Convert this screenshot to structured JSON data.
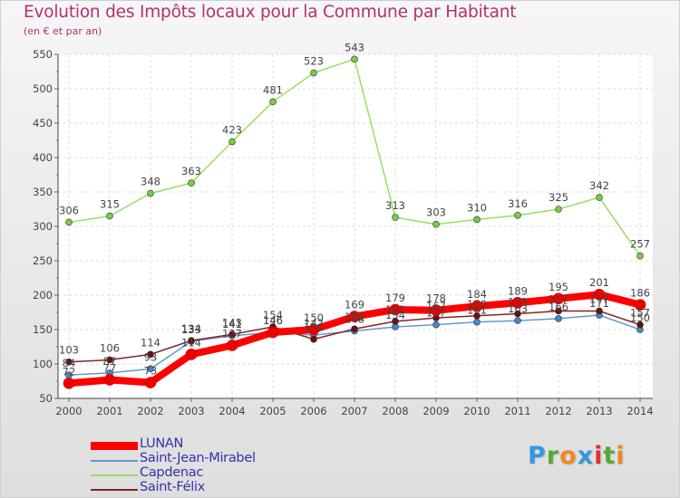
{
  "chart_data": {
    "type": "line",
    "title": "Evolution des Impôts locaux pour la Commune par Habitant",
    "subtitle": "(en € et par an)",
    "xlabel": "",
    "ylabel": "",
    "ylim": [
      50,
      550
    ],
    "y_ticks": [
      50,
      100,
      150,
      200,
      250,
      300,
      350,
      400,
      450,
      500,
      550
    ],
    "y_tick_labels": [
      "50",
      "100",
      "150",
      "200",
      "250",
      "300",
      "350",
      "400",
      "450",
      "500",
      "550"
    ],
    "grid": true,
    "legend_position": "bottom-left",
    "categories": [
      "2000",
      "2001",
      "2002",
      "2003",
      "2004",
      "2005",
      "2006",
      "2007",
      "2008",
      "2009",
      "2010",
      "2011",
      "2012",
      "2013",
      "2014"
    ],
    "series": [
      {
        "name": "Capdenac",
        "color": "#99dd66",
        "marker_color": "#77cc44",
        "values": [
          306,
          315,
          348,
          363,
          423,
          481,
          523,
          543,
          313,
          303,
          310,
          316,
          325,
          342,
          257
        ],
        "value_labels": [
          "306",
          "315",
          "348",
          "363",
          "423",
          "481",
          "523",
          "543",
          "313",
          "303",
          "310",
          "316",
          "325",
          "342",
          "257"
        ]
      },
      {
        "name": "Saint-Jean-Mirabel",
        "color": "#6699cc",
        "marker_color": "#4488cc",
        "values": [
          84,
          87,
          93,
          133,
          141,
          146,
          142,
          148,
          154,
          157,
          161,
          163,
          166,
          171,
          150
        ],
        "value_labels": [
          "84",
          "87",
          "93",
          "133",
          "141",
          "146",
          "142",
          "148",
          "154",
          "157",
          "161",
          "163",
          "166",
          "171",
          "150"
        ]
      },
      {
        "name": "Saint-Félix",
        "color": "#882222",
        "marker_color": "#661111",
        "values": [
          103,
          106,
          114,
          134,
          143,
          154,
          136,
          151,
          162,
          167,
          170,
          173,
          177,
          177,
          157
        ],
        "value_labels": [
          "103",
          "106",
          "114",
          "134",
          "143",
          "154",
          "136",
          "151",
          "162",
          "167",
          "170",
          "173",
          "177",
          "177",
          "157"
        ]
      },
      {
        "name": "LUNAN",
        "color": "#ff0000",
        "marker_color": "#ee0000",
        "values": [
          72,
          77,
          73,
          114,
          127,
          146,
          150,
          169,
          179,
          178,
          184,
          189,
          195,
          201,
          186
        ],
        "value_labels": [
          "72",
          "77",
          "73",
          "114",
          "127",
          "146",
          "150",
          "169",
          "179",
          "178",
          "184",
          "189",
          "195",
          "201",
          "186"
        ]
      }
    ]
  },
  "legend": {
    "items": [
      {
        "label": "LUNAN",
        "color": "#ff0000"
      },
      {
        "label": "Saint-Jean-Mirabel",
        "color": "#6699cc"
      },
      {
        "label": "Capdenac",
        "color": "#99dd66"
      },
      {
        "label": "Saint-Félix",
        "color": "#882222"
      }
    ]
  },
  "logo": {
    "letters": [
      "P",
      "r",
      "o",
      "x",
      "i",
      "t",
      "i"
    ],
    "colors": [
      "#3399dd",
      "#55aa33",
      "#ee8822",
      "#3399dd",
      "#dd3333",
      "#55aa33",
      "#ee8822"
    ]
  }
}
